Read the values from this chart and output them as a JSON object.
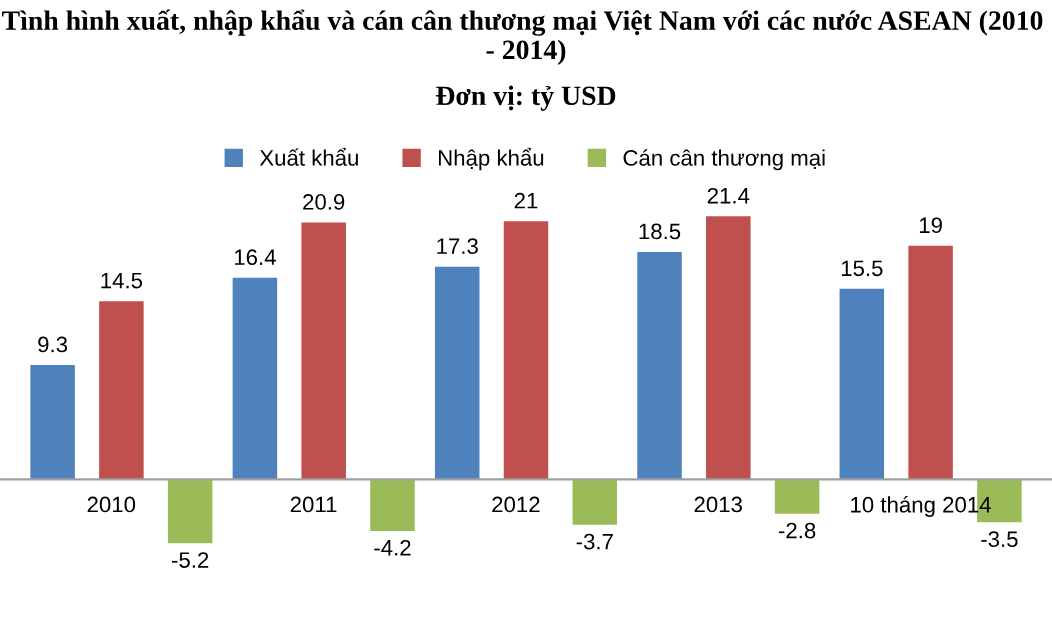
{
  "chart_data": {
    "type": "bar",
    "title": "Tình hình xuất, nhập khẩu và cán cân thương mại Việt Nam với các nước ASEAN (2010  - 2014)",
    "subtitle": "Đơn vị: tỷ USD",
    "categories": [
      "2010",
      "2011",
      "2012",
      "2013",
      "10 tháng 2014"
    ],
    "series": [
      {
        "name": "Xuất khẩu",
        "color": "#4f81bd",
        "values": [
          9.3,
          16.4,
          17.3,
          18.5,
          15.5
        ]
      },
      {
        "name": "Nhập khẩu",
        "color": "#c0504d",
        "values": [
          14.5,
          20.9,
          21,
          21.4,
          19
        ]
      },
      {
        "name": "Cán cân thương mại",
        "color": "#9bbb59",
        "values": [
          -5.2,
          -4.2,
          -3.7,
          -2.8,
          -3.5
        ]
      }
    ],
    "data_labels": true,
    "legend": "top",
    "grid": false
  }
}
